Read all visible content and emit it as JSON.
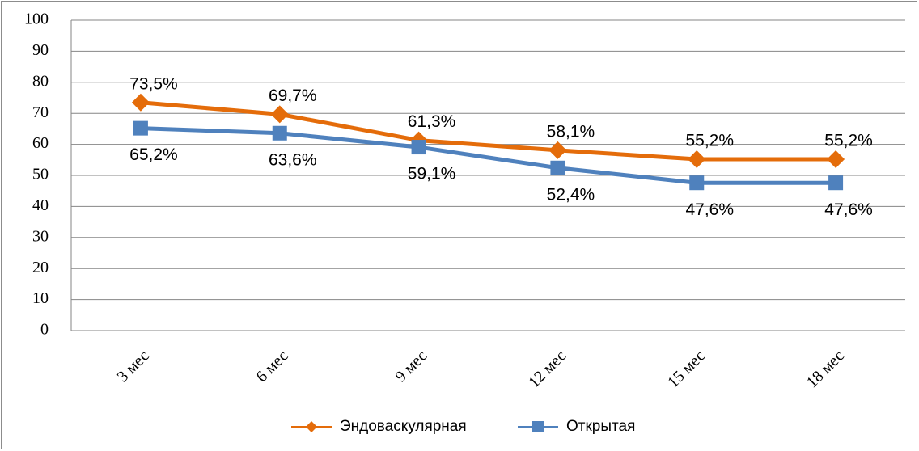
{
  "chart_data": {
    "type": "line",
    "categories": [
      "3 мес",
      "6 мес",
      "9 мес",
      "12 мес",
      "15 мес",
      "18 мес"
    ],
    "series": [
      {
        "name": "Эндоваскулярная",
        "color": "#e46c0a",
        "marker": "diamond",
        "values": [
          73.5,
          69.7,
          61.3,
          58.1,
          55.2,
          55.2
        ],
        "value_labels": [
          "73,5%",
          "69,7%",
          "61,3%",
          "58,1%",
          "55,2%",
          "55,2%"
        ]
      },
      {
        "name": "Открытая",
        "color": "#4f81bd",
        "marker": "square",
        "values": [
          65.2,
          63.6,
          59.1,
          52.4,
          47.6,
          47.6
        ],
        "value_labels": [
          "65,2%",
          "63,6%",
          "59,1%",
          "52,4%",
          "47,6%",
          "47,6%"
        ]
      }
    ],
    "ylim": [
      0,
      100
    ],
    "yticks": [
      0,
      10,
      20,
      30,
      40,
      50,
      60,
      70,
      80,
      90,
      100
    ],
    "grid": true,
    "legend": "bottom"
  }
}
